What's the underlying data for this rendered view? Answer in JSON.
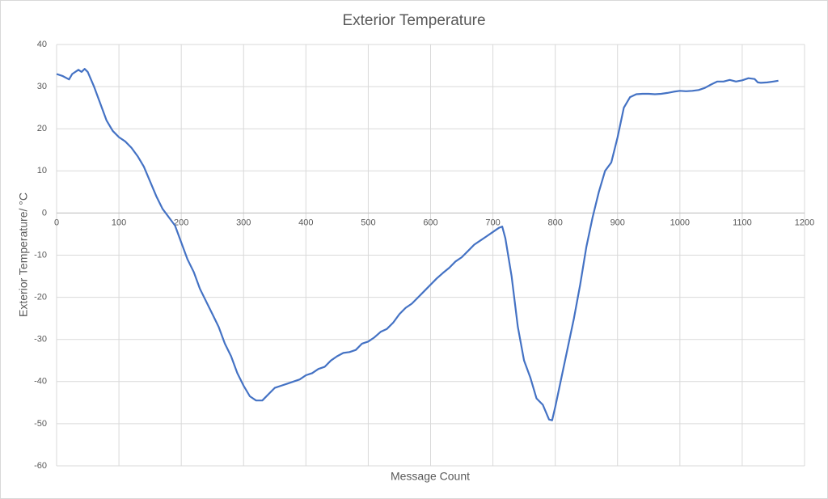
{
  "chart_data": {
    "type": "line",
    "title": "Exterior Temperature",
    "x_label": "Message Count",
    "y_label": "Exterior Temperature/ °C",
    "series": [
      {
        "name": "Exterior Temperature",
        "color": "#4472c4",
        "x": [
          0,
          10,
          20,
          25,
          35,
          40,
          45,
          50,
          60,
          70,
          80,
          90,
          100,
          110,
          120,
          130,
          140,
          150,
          160,
          170,
          180,
          190,
          200,
          210,
          220,
          230,
          240,
          250,
          260,
          270,
          280,
          290,
          300,
          310,
          320,
          330,
          340,
          350,
          360,
          370,
          380,
          390,
          400,
          410,
          420,
          430,
          440,
          450,
          460,
          470,
          480,
          490,
          500,
          510,
          520,
          530,
          540,
          550,
          560,
          570,
          580,
          590,
          600,
          610,
          620,
          630,
          640,
          650,
          660,
          670,
          680,
          690,
          700,
          705,
          710,
          715,
          720,
          730,
          740,
          750,
          760,
          770,
          780,
          790,
          795,
          800,
          810,
          820,
          830,
          840,
          850,
          860,
          870,
          880,
          890,
          900,
          910,
          920,
          930,
          940,
          950,
          960,
          970,
          980,
          990,
          1000,
          1010,
          1020,
          1030,
          1040,
          1050,
          1060,
          1070,
          1080,
          1090,
          1100,
          1110,
          1120,
          1125,
          1130,
          1140,
          1150,
          1158
        ],
        "values": [
          33,
          32.5,
          31.7,
          33,
          34,
          33.5,
          34.2,
          33.5,
          30,
          26,
          22,
          19.5,
          18,
          17,
          15.5,
          13.5,
          11,
          7.5,
          4,
          1,
          -1,
          -3,
          -7,
          -11,
          -14,
          -18,
          -21,
          -24,
          -27,
          -31,
          -34,
          -38,
          -41,
          -43.5,
          -44.5,
          -44.5,
          -43,
          -41.5,
          -41,
          -40.5,
          -40,
          -39.5,
          -38.5,
          -38,
          -37,
          -36.5,
          -35,
          -34,
          -33.2,
          -33,
          -32.5,
          -31,
          -30.5,
          -29.5,
          -28.2,
          -27.5,
          -26,
          -24,
          -22.5,
          -21.5,
          -20,
          -18.5,
          -17,
          -15.5,
          -14.2,
          -13,
          -11.5,
          -10.5,
          -9,
          -7.5,
          -6.5,
          -5.5,
          -4.5,
          -4,
          -3.5,
          -3.2,
          -6,
          -15,
          -27,
          -35,
          -39,
          -44,
          -45.5,
          -49,
          -49.2,
          -46,
          -39,
          -32,
          -25,
          -17,
          -8,
          -1,
          5,
          10,
          12,
          18,
          25,
          27.5,
          28.2,
          28.3,
          28.3,
          28.2,
          28.3,
          28.5,
          28.8,
          29,
          28.9,
          29,
          29.2,
          29.7,
          30.5,
          31.2,
          31.2,
          31.6,
          31.2,
          31.5,
          32,
          31.8,
          31,
          30.9,
          31,
          31.2,
          31.4
        ]
      }
    ],
    "xlim": [
      0,
      1200
    ],
    "xticks": [
      0,
      100,
      200,
      300,
      400,
      500,
      600,
      700,
      800,
      900,
      1000,
      1100,
      1200
    ],
    "ylim": [
      -60,
      40
    ],
    "yticks": [
      -60,
      -50,
      -40,
      -30,
      -20,
      -10,
      0,
      10,
      20,
      30,
      40
    ],
    "grid": true
  }
}
